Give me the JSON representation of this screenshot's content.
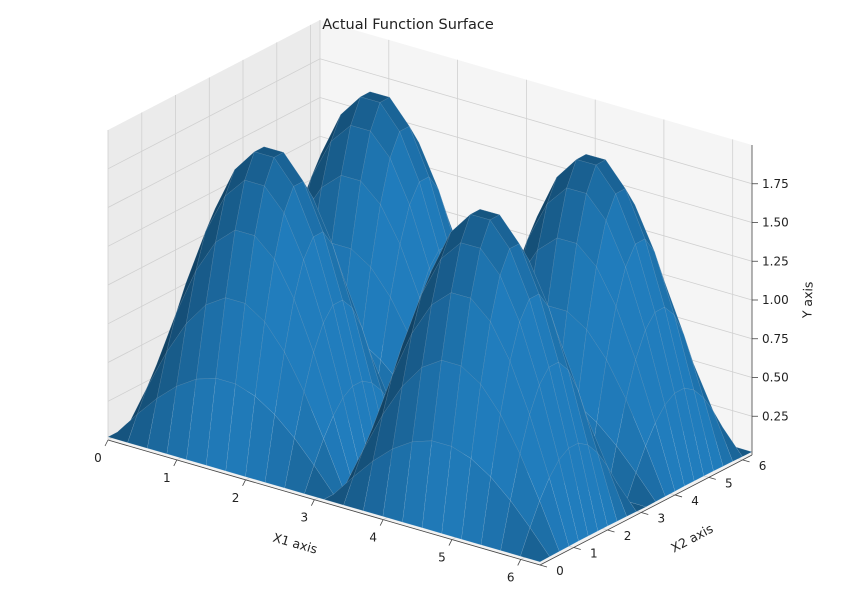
{
  "chart_data": {
    "type": "surface3d",
    "title": "Actual Function Surface",
    "xlabel": "X1 axis",
    "ylabel": "X2 axis",
    "zlabel": "Y axis",
    "xlim": [
      0,
      6.28
    ],
    "ylim": [
      0,
      6.28
    ],
    "zlim": [
      0,
      2
    ],
    "x_ticks": [
      0,
      1,
      2,
      3,
      4,
      5,
      6
    ],
    "y_ticks": [
      0,
      1,
      2,
      3,
      4,
      5,
      6
    ],
    "z_ticks": [
      0.25,
      0.5,
      0.75,
      1.0,
      1.25,
      1.5,
      1.75
    ],
    "x_tick_labels": [
      "0",
      "1",
      "2",
      "3",
      "4",
      "5",
      "6"
    ],
    "y_tick_labels": [
      "0",
      "1",
      "2",
      "3",
      "4",
      "5",
      "6"
    ],
    "z_tick_labels": [
      "0.25",
      "0.50",
      "0.75",
      "1.00",
      "1.25",
      "1.50",
      "1.75"
    ],
    "grid": true,
    "surface_color": "#1f77b4",
    "pane_color": "#f2f2f2",
    "grid_color": "#d0d0d0",
    "peaks": [
      {
        "x1": 1.57,
        "x2": 1.57,
        "y": 1.9
      },
      {
        "x1": 4.71,
        "x2": 1.57,
        "y": 1.9
      },
      {
        "x1": 1.57,
        "x2": 4.71,
        "y": 1.9
      },
      {
        "x1": 4.71,
        "x2": 4.71,
        "y": 1.9
      }
    ]
  }
}
